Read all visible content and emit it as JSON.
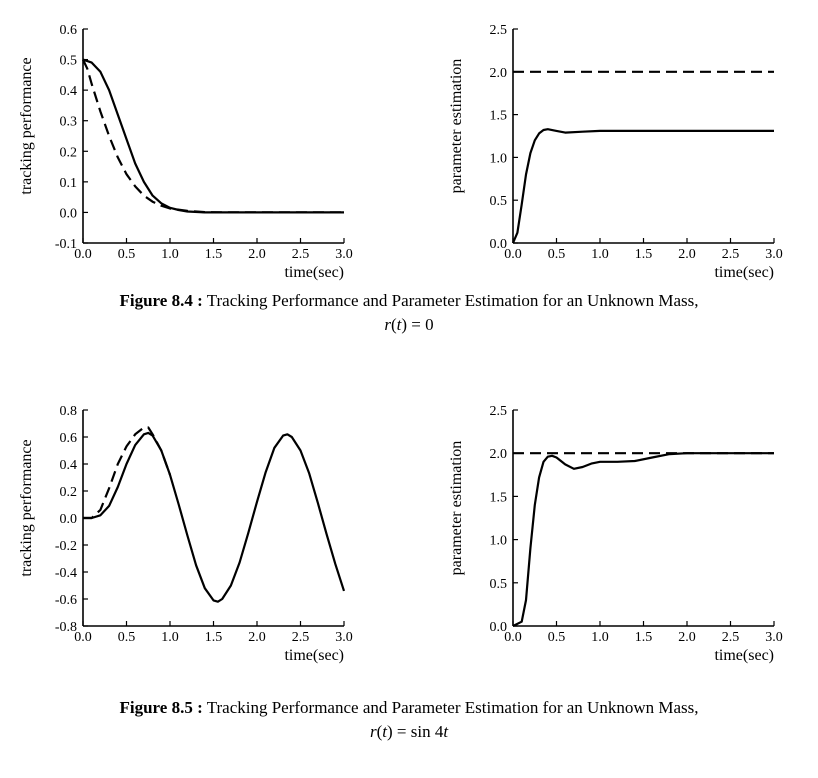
{
  "chart_data": [
    {
      "type": "line",
      "figure": "8.4",
      "panel": "left",
      "xlabel": "time(sec)",
      "ylabel": "tracking performance",
      "xlim": [
        0,
        3.0
      ],
      "ylim": [
        -0.1,
        0.6
      ],
      "xticks": [
        "0.0",
        "0.5",
        "1.0",
        "1.5",
        "2.0",
        "2.5",
        "3.0"
      ],
      "yticks": [
        "-0.1",
        "0.0",
        "0.1",
        "0.2",
        "0.3",
        "0.4",
        "0.5",
        "0.6"
      ],
      "series": [
        {
          "style": "solid",
          "points": [
            [
              0,
              0.5
            ],
            [
              0.1,
              0.49
            ],
            [
              0.2,
              0.46
            ],
            [
              0.3,
              0.4
            ],
            [
              0.4,
              0.32
            ],
            [
              0.5,
              0.24
            ],
            [
              0.6,
              0.16
            ],
            [
              0.7,
              0.1
            ],
            [
              0.8,
              0.055
            ],
            [
              0.9,
              0.03
            ],
            [
              1.0,
              0.015
            ],
            [
              1.1,
              0.008
            ],
            [
              1.2,
              0.003
            ],
            [
              1.4,
              0.0
            ],
            [
              3.0,
              0.0
            ]
          ]
        },
        {
          "style": "dashed",
          "points": [
            [
              0,
              0.5
            ],
            [
              0.05,
              0.47
            ],
            [
              0.1,
              0.42
            ],
            [
              0.2,
              0.33
            ],
            [
              0.3,
              0.25
            ],
            [
              0.4,
              0.18
            ],
            [
              0.5,
              0.125
            ],
            [
              0.6,
              0.085
            ],
            [
              0.7,
              0.055
            ],
            [
              0.8,
              0.035
            ],
            [
              0.9,
              0.022
            ],
            [
              1.0,
              0.013
            ],
            [
              1.2,
              0.005
            ],
            [
              1.4,
              0.001
            ],
            [
              1.6,
              0.0
            ],
            [
              3.0,
              0.0
            ]
          ]
        }
      ]
    },
    {
      "type": "line",
      "figure": "8.4",
      "panel": "right",
      "xlabel": "time(sec)",
      "ylabel": "parameter estimation",
      "xlim": [
        0,
        3.0
      ],
      "ylim": [
        0,
        2.5
      ],
      "xticks": [
        "0.0",
        "0.5",
        "1.0",
        "1.5",
        "2.0",
        "2.5",
        "3.0"
      ],
      "yticks": [
        "0.0",
        "0.5",
        "1.0",
        "1.5",
        "2.0",
        "2.5"
      ],
      "series": [
        {
          "style": "solid",
          "points": [
            [
              0,
              0.0
            ],
            [
              0.05,
              0.12
            ],
            [
              0.1,
              0.45
            ],
            [
              0.15,
              0.8
            ],
            [
              0.2,
              1.05
            ],
            [
              0.25,
              1.2
            ],
            [
              0.3,
              1.28
            ],
            [
              0.35,
              1.32
            ],
            [
              0.4,
              1.33
            ],
            [
              0.5,
              1.31
            ],
            [
              0.6,
              1.29
            ],
            [
              0.8,
              1.3
            ],
            [
              1.0,
              1.31
            ],
            [
              1.5,
              1.31
            ],
            [
              3.0,
              1.31
            ]
          ]
        },
        {
          "style": "dashed",
          "points": [
            [
              0,
              2.0
            ],
            [
              3.0,
              2.0
            ]
          ]
        }
      ]
    },
    {
      "type": "line",
      "figure": "8.5",
      "panel": "left",
      "xlabel": "time(sec)",
      "ylabel": "tracking performance",
      "xlim": [
        0,
        3.0
      ],
      "ylim": [
        -0.8,
        0.8
      ],
      "xticks": [
        "0.0",
        "0.5",
        "1.0",
        "1.5",
        "2.0",
        "2.5",
        "3.0"
      ],
      "yticks": [
        "-0.8",
        "-0.6",
        "-0.4",
        "-0.2",
        "0.0",
        "0.2",
        "0.4",
        "0.6",
        "0.8"
      ],
      "series": [
        {
          "style": "solid",
          "points": [
            [
              0,
              0.0
            ],
            [
              0.1,
              0.0
            ],
            [
              0.2,
              0.02
            ],
            [
              0.3,
              0.09
            ],
            [
              0.4,
              0.23
            ],
            [
              0.5,
              0.4
            ],
            [
              0.6,
              0.54
            ],
            [
              0.7,
              0.62
            ],
            [
              0.75,
              0.63
            ],
            [
              0.8,
              0.61
            ],
            [
              0.9,
              0.5
            ],
            [
              1.0,
              0.32
            ],
            [
              1.1,
              0.1
            ],
            [
              1.2,
              -0.13
            ],
            [
              1.3,
              -0.35
            ],
            [
              1.4,
              -0.52
            ],
            [
              1.5,
              -0.61
            ],
            [
              1.55,
              -0.62
            ],
            [
              1.6,
              -0.6
            ],
            [
              1.7,
              -0.5
            ],
            [
              1.8,
              -0.33
            ],
            [
              1.9,
              -0.11
            ],
            [
              2.0,
              0.12
            ],
            [
              2.1,
              0.34
            ],
            [
              2.2,
              0.52
            ],
            [
              2.3,
              0.61
            ],
            [
              2.35,
              0.62
            ],
            [
              2.4,
              0.6
            ],
            [
              2.5,
              0.5
            ],
            [
              2.6,
              0.33
            ],
            [
              2.7,
              0.11
            ],
            [
              2.8,
              -0.12
            ],
            [
              2.9,
              -0.34
            ],
            [
              3.0,
              -0.54
            ]
          ]
        },
        {
          "style": "dashed",
          "points": [
            [
              0,
              0.0
            ],
            [
              0.1,
              0.0
            ],
            [
              0.2,
              0.06
            ],
            [
              0.3,
              0.22
            ],
            [
              0.4,
              0.4
            ],
            [
              0.5,
              0.53
            ],
            [
              0.6,
              0.62
            ],
            [
              0.7,
              0.67
            ],
            [
              0.75,
              0.67
            ],
            [
              0.8,
              0.62
            ],
            [
              0.9,
              0.5
            ],
            [
              1.0,
              0.32
            ]
          ]
        }
      ]
    },
    {
      "type": "line",
      "figure": "8.5",
      "panel": "right",
      "xlabel": "time(sec)",
      "ylabel": "parameter estimation",
      "xlim": [
        0,
        3.0
      ],
      "ylim": [
        0,
        2.5
      ],
      "xticks": [
        "0.0",
        "0.5",
        "1.0",
        "1.5",
        "2.0",
        "2.5",
        "3.0"
      ],
      "yticks": [
        "0.0",
        "0.5",
        "1.0",
        "1.5",
        "2.0",
        "2.5"
      ],
      "series": [
        {
          "style": "solid",
          "points": [
            [
              0,
              0.0
            ],
            [
              0.1,
              0.05
            ],
            [
              0.15,
              0.3
            ],
            [
              0.2,
              0.9
            ],
            [
              0.25,
              1.4
            ],
            [
              0.3,
              1.72
            ],
            [
              0.35,
              1.9
            ],
            [
              0.4,
              1.96
            ],
            [
              0.45,
              1.97
            ],
            [
              0.5,
              1.95
            ],
            [
              0.6,
              1.87
            ],
            [
              0.7,
              1.82
            ],
            [
              0.8,
              1.84
            ],
            [
              0.9,
              1.88
            ],
            [
              1.0,
              1.9
            ],
            [
              1.2,
              1.9
            ],
            [
              1.4,
              1.91
            ],
            [
              1.6,
              1.95
            ],
            [
              1.8,
              1.99
            ],
            [
              2.0,
              2.0
            ],
            [
              3.0,
              2.0
            ]
          ]
        },
        {
          "style": "dashed",
          "points": [
            [
              0,
              2.0
            ],
            [
              3.0,
              2.0
            ]
          ]
        }
      ]
    }
  ],
  "captions": [
    {
      "label": "Figure 8.4 :",
      "text": " Tracking Performance and Parameter Estimation for an Unknown Mass,",
      "eq_var": "r",
      "eq_arg": "t",
      "eq_rhs": " = 0"
    },
    {
      "label": "Figure 8.5 :",
      "text": " Tracking Performance and Parameter Estimation for an Unknown Mass,",
      "eq_var": "r",
      "eq_arg": "t",
      "eq_rhs": " = sin 4",
      "eq_tail": "t"
    }
  ]
}
